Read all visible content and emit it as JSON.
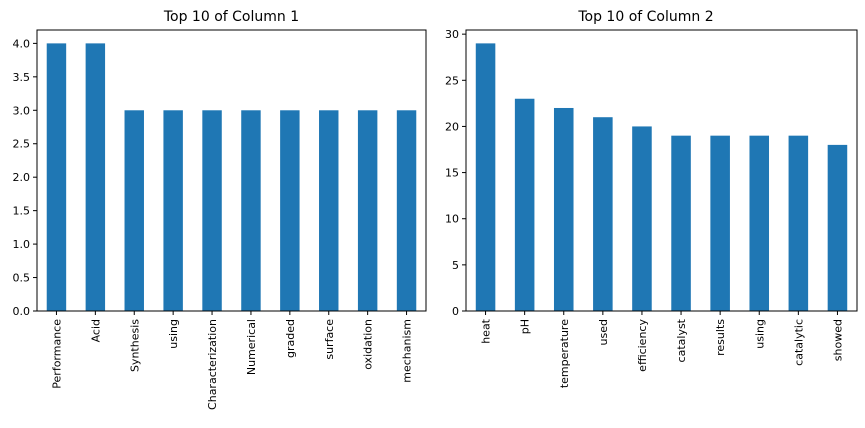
{
  "chart_data": [
    {
      "type": "bar",
      "title": "Top 10 of Column 1",
      "categories": [
        "Performance",
        "Acid",
        "Synthesis",
        "using",
        "Characterization",
        "Numerical",
        "graded",
        "surface",
        "oxidation",
        "mechanism"
      ],
      "values": [
        4,
        4,
        3,
        3,
        3,
        3,
        3,
        3,
        3,
        3
      ],
      "ylim": [
        0,
        4.2
      ],
      "yticks": [
        0.0,
        0.5,
        1.0,
        1.5,
        2.0,
        2.5,
        3.0,
        3.5,
        4.0
      ],
      "ytick_labels": [
        "0.0",
        "0.5",
        "1.0",
        "1.5",
        "2.0",
        "2.5",
        "3.0",
        "3.5",
        "4.0"
      ],
      "xlabel": "",
      "ylabel": "",
      "grid": false,
      "bar_color": "#1f77b4"
    },
    {
      "type": "bar",
      "title": "Top 10 of Column 2",
      "categories": [
        "heat",
        "pH",
        "temperature",
        "used",
        "efficiency",
        "catalyst",
        "results",
        "using",
        "catalytic",
        "showed"
      ],
      "values": [
        29,
        23,
        22,
        21,
        20,
        19,
        19,
        19,
        19,
        18
      ],
      "ylim": [
        0,
        30.45
      ],
      "yticks": [
        0,
        5,
        10,
        15,
        20,
        25,
        30
      ],
      "ytick_labels": [
        "0",
        "5",
        "10",
        "15",
        "20",
        "25",
        "30"
      ],
      "xlabel": "",
      "ylabel": "",
      "grid": false,
      "bar_color": "#1f77b4"
    }
  ]
}
